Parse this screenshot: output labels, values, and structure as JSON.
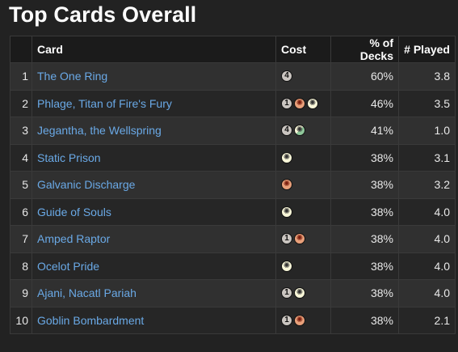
{
  "title": "Top Cards Overall",
  "columns": {
    "rank": "",
    "card": "Card",
    "cost": "Cost",
    "pct_decks": "% of Decks",
    "played": "# Played"
  },
  "rows": [
    {
      "rank": "1",
      "card": "The One Ring",
      "cost": [
        {
          "type": "generic",
          "symbol": "4"
        }
      ],
      "pct": "60%",
      "played": "3.8"
    },
    {
      "rank": "2",
      "card": "Phlage, Titan of Fire's Fury",
      "cost": [
        {
          "type": "generic",
          "symbol": "1"
        },
        {
          "type": "red",
          "symbol": "✺"
        },
        {
          "type": "white",
          "symbol": "✺"
        }
      ],
      "pct": "46%",
      "played": "3.5"
    },
    {
      "rank": "3",
      "card": "Jegantha, the Wellspring",
      "cost": [
        {
          "type": "generic",
          "symbol": "4"
        },
        {
          "type": "gw",
          "symbol": "✺"
        }
      ],
      "pct": "41%",
      "played": "1.0"
    },
    {
      "rank": "4",
      "card": "Static Prison",
      "cost": [
        {
          "type": "white",
          "symbol": "✺"
        }
      ],
      "pct": "38%",
      "played": "3.1"
    },
    {
      "rank": "5",
      "card": "Galvanic Discharge",
      "cost": [
        {
          "type": "red",
          "symbol": "✺"
        }
      ],
      "pct": "38%",
      "played": "3.2"
    },
    {
      "rank": "6",
      "card": "Guide of Souls",
      "cost": [
        {
          "type": "white",
          "symbol": "✺"
        }
      ],
      "pct": "38%",
      "played": "4.0"
    },
    {
      "rank": "7",
      "card": "Amped Raptor",
      "cost": [
        {
          "type": "generic",
          "symbol": "1"
        },
        {
          "type": "red",
          "symbol": "✺"
        }
      ],
      "pct": "38%",
      "played": "4.0"
    },
    {
      "rank": "8",
      "card": "Ocelot Pride",
      "cost": [
        {
          "type": "white",
          "symbol": "✺"
        }
      ],
      "pct": "38%",
      "played": "4.0"
    },
    {
      "rank": "9",
      "card": "Ajani, Nacatl Pariah",
      "cost": [
        {
          "type": "generic",
          "symbol": "1"
        },
        {
          "type": "white",
          "symbol": "✺"
        }
      ],
      "pct": "38%",
      "played": "4.0"
    },
    {
      "rank": "10",
      "card": "Goblin Bombardment",
      "cost": [
        {
          "type": "generic",
          "symbol": "1"
        },
        {
          "type": "red",
          "symbol": "✺"
        }
      ],
      "pct": "38%",
      "played": "2.1"
    }
  ]
}
